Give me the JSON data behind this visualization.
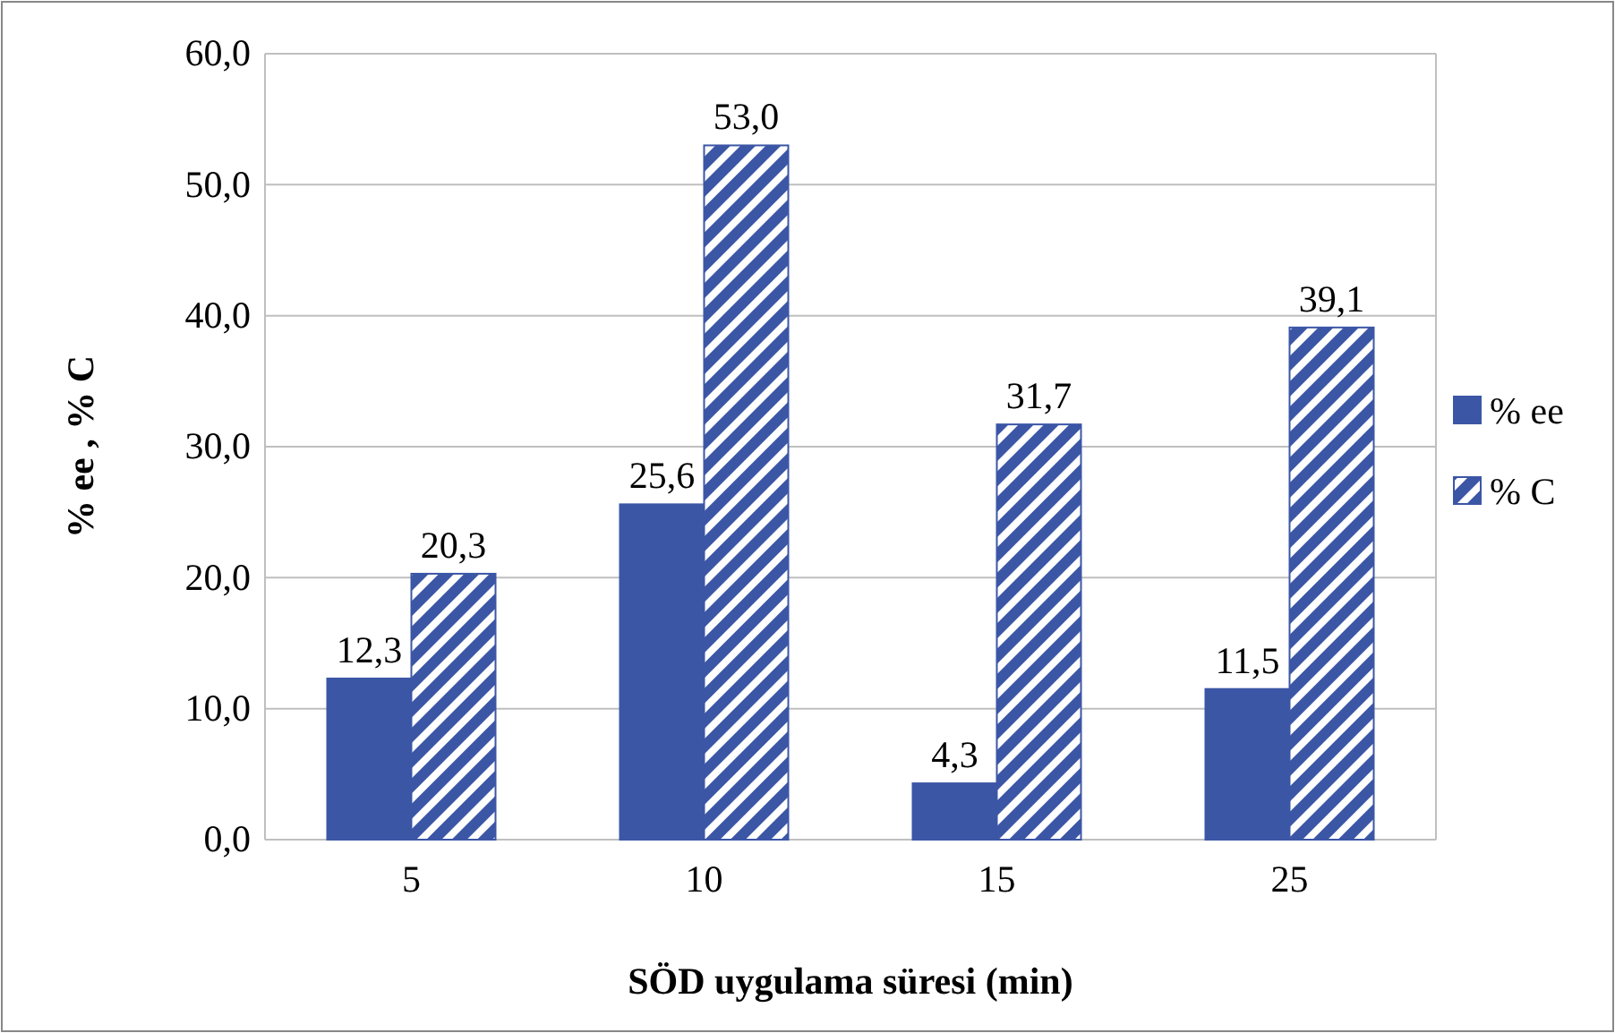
{
  "chart_data": {
    "type": "bar",
    "xlabel": "SÖD uygulama süresi (min)",
    "ylabel": "% ee , % C",
    "categories": [
      "5",
      "10",
      "15",
      "25"
    ],
    "series": [
      {
        "name": "% ee",
        "color": "#3c56a6",
        "values": [
          12.3,
          25.6,
          4.3,
          11.5
        ],
        "value_labels": [
          "12,3",
          "25,6",
          "4,3",
          "11,5"
        ]
      },
      {
        "name": "% C",
        "color": "#3c56a6",
        "values": [
          20.3,
          53.0,
          31.7,
          39.1
        ],
        "value_labels": [
          "20,3",
          "53,0",
          "31,7",
          "39,1"
        ]
      }
    ],
    "ylim": [
      0,
      60
    ],
    "yticks": [
      {
        "value": 0,
        "label": "0,0"
      },
      {
        "value": 10,
        "label": "10,0"
      },
      {
        "value": 20,
        "label": "20,0"
      },
      {
        "value": 30,
        "label": "30,0"
      },
      {
        "value": 40,
        "label": "40,0"
      },
      {
        "value": 50,
        "label": "50,0"
      },
      {
        "value": 60,
        "label": "60,0"
      }
    ],
    "grid": "y",
    "legend": "right"
  }
}
